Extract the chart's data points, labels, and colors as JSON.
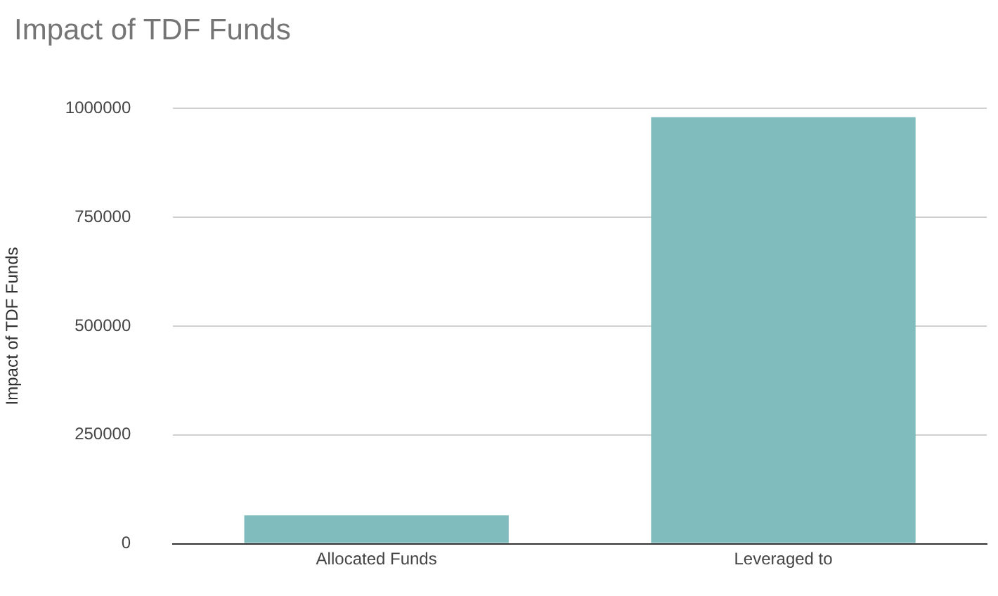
{
  "chart_data": {
    "type": "bar",
    "title": "Impact of TDF Funds",
    "ylabel": "Impact of TDF Funds",
    "categories": [
      "Allocated Funds",
      "Leveraged to"
    ],
    "values": [
      65000,
      980000
    ],
    "color": "#80bcbd",
    "ylim": [
      0,
      1000000
    ],
    "yticks": [
      0,
      250000,
      500000,
      750000,
      1000000
    ],
    "grid": "y"
  }
}
